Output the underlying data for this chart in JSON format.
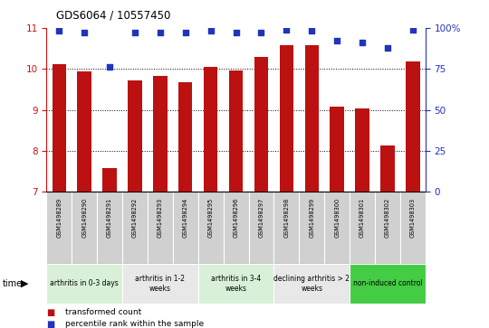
{
  "title": "GDS6064 / 10557450",
  "samples": [
    "GSM1498289",
    "GSM1498290",
    "GSM1498291",
    "GSM1498292",
    "GSM1498293",
    "GSM1498294",
    "GSM1498295",
    "GSM1498296",
    "GSM1498297",
    "GSM1498298",
    "GSM1498299",
    "GSM1498300",
    "GSM1498301",
    "GSM1498302",
    "GSM1498303"
  ],
  "transformed_count": [
    10.12,
    9.93,
    7.58,
    9.72,
    9.83,
    9.68,
    10.05,
    9.95,
    10.3,
    10.58,
    10.57,
    9.07,
    9.03,
    8.13,
    10.18
  ],
  "percentile_rank": [
    98,
    97,
    76,
    97,
    97,
    97,
    98,
    97,
    97,
    99,
    98,
    92,
    91,
    88,
    99
  ],
  "ylim_left": [
    7,
    11
  ],
  "ylim_right": [
    0,
    100
  ],
  "yticks_left": [
    7,
    8,
    9,
    10,
    11
  ],
  "yticks_right": [
    0,
    25,
    50,
    75,
    100
  ],
  "ytick_labels_right": [
    "0",
    "25",
    "50",
    "75",
    "100%"
  ],
  "bar_color": "#bb1111",
  "dot_color": "#2233bb",
  "groups": [
    {
      "label": "arthritis in 0-3 days",
      "start": 0,
      "end": 3,
      "color": "#d8f0d8"
    },
    {
      "label": "arthritis in 1-2\nweeks",
      "start": 3,
      "end": 6,
      "color": "#e8e8e8"
    },
    {
      "label": "arthritis in 3-4\nweeks",
      "start": 6,
      "end": 9,
      "color": "#d8f0d8"
    },
    {
      "label": "declining arthritis > 2\nweeks",
      "start": 9,
      "end": 12,
      "color": "#e8e8e8"
    },
    {
      "label": "non-induced control",
      "start": 12,
      "end": 15,
      "color": "#44cc44"
    }
  ],
  "legend_bar_label": "transformed count",
  "legend_dot_label": "percentile rank within the sample",
  "background_color": "#ffffff",
  "axis_color_left": "#cc1111",
  "axis_color_right": "#2233bb",
  "sample_box_color": "#d0d0d0",
  "grid_yticks": [
    8,
    9,
    10
  ]
}
